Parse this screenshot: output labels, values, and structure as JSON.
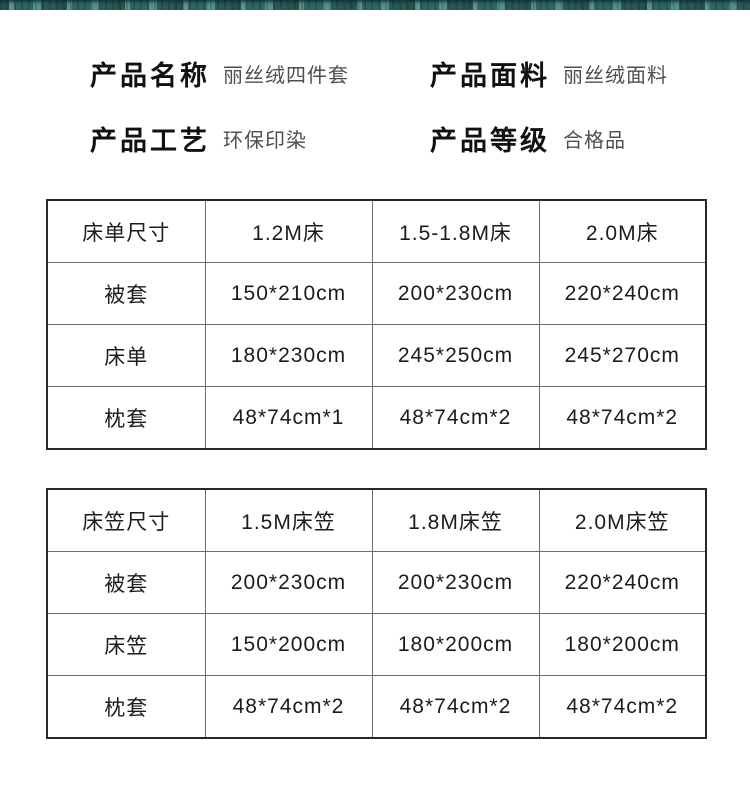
{
  "page": {
    "background": "#ffffff",
    "band_teal": "#3a7a76",
    "band_teal_dark": "#123432"
  },
  "product_info": {
    "items": [
      {
        "label": "产品名称",
        "value": "丽丝绒四件套"
      },
      {
        "label": "产品面料",
        "value": "丽丝绒面料"
      },
      {
        "label": "产品工艺",
        "value": "环保印染"
      },
      {
        "label": "产品等级",
        "value": "合格品"
      }
    ]
  },
  "tables": [
    {
      "header": [
        "床单尺寸",
        "1.2M床",
        "1.5-1.8M床",
        "2.0M床"
      ],
      "rows": [
        [
          "被套",
          "150*210cm",
          "200*230cm",
          "220*240cm"
        ],
        [
          "床单",
          "180*230cm",
          "245*250cm",
          "245*270cm"
        ],
        [
          "枕套",
          "48*74cm*1",
          "48*74cm*2",
          "48*74cm*2"
        ]
      ]
    },
    {
      "header": [
        "床笠尺寸",
        "1.5M床笠",
        "1.8M床笠",
        "2.0M床笠"
      ],
      "rows": [
        [
          "被套",
          "200*230cm",
          "200*230cm",
          "220*240cm"
        ],
        [
          "床笠",
          "150*200cm",
          "180*200cm",
          "180*200cm"
        ],
        [
          "枕套",
          "48*74cm*2",
          "48*74cm*2",
          "48*74cm*2"
        ]
      ]
    }
  ]
}
